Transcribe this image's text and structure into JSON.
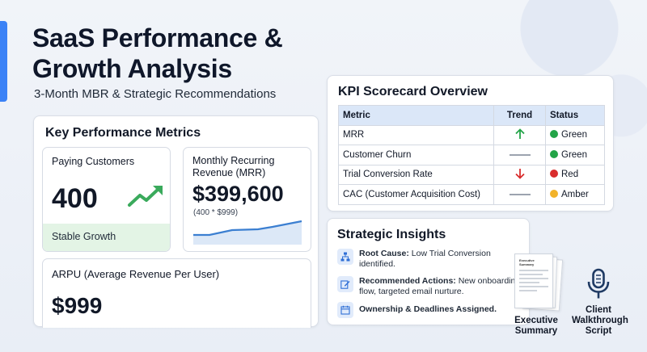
{
  "header": {
    "title": "SaaS Performance & Growth Analysis",
    "subtitle": "3-Month MBR & Strategic Recommendations"
  },
  "metrics": {
    "title": "Key Performance Metrics",
    "customers": {
      "label": "Paying Customers",
      "value": "400",
      "footer": "Stable Growth"
    },
    "mrr": {
      "label": "Monthly Recurring Revenue (MRR)",
      "value": "$399,600",
      "formula": "(400 * $999)"
    },
    "arpu": {
      "label": "ARPU (Average Revenue Per User)",
      "value": "$999"
    }
  },
  "scorecard": {
    "title": "KPI Scorecard Overview",
    "headers": [
      "Metric",
      "Trend",
      "Status"
    ],
    "rows": [
      {
        "metric": "MRR",
        "trend": "up",
        "status": "Green",
        "color": "#22a447"
      },
      {
        "metric": "Customer Churn",
        "trend": "flat",
        "status": "Green",
        "color": "#22a447"
      },
      {
        "metric": "Trial Conversion Rate",
        "trend": "down",
        "status": "Red",
        "color": "#d92d2d"
      },
      {
        "metric": "CAC (Customer Acquisition Cost)",
        "trend": "flat",
        "status": "Amber",
        "color": "#f2b32a"
      }
    ]
  },
  "insights": {
    "title": "Strategic Insights",
    "items": [
      {
        "icon": "hierarchy-icon",
        "label": "Root Cause:",
        "text": " Low Trial Conversion identified."
      },
      {
        "icon": "edit-icon",
        "label": "Recommended Actions:",
        "text": " New onboarding flow, targeted email nurture."
      },
      {
        "icon": "calendar-icon",
        "label": "Ownership & Deadlines Assigned.",
        "text": ""
      }
    ]
  },
  "deliverables": {
    "doc_heading": "Executive Summary",
    "summary_caption": "Executive Summary",
    "script_caption": "Client Walkthrough Script"
  },
  "colors": {
    "accent": "#3b82f6",
    "green": "#22a447",
    "red": "#d92d2d",
    "amber": "#f2b32a"
  }
}
